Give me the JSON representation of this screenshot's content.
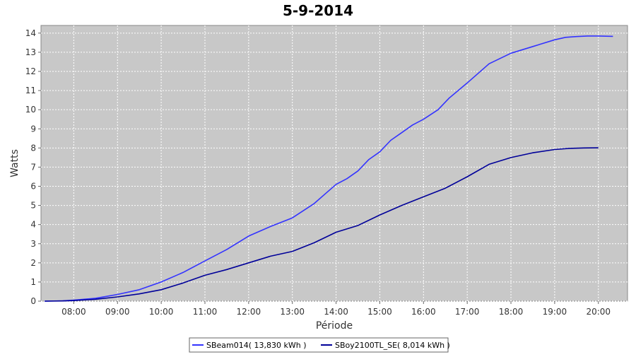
{
  "chart_data": {
    "type": "line",
    "title": "5-9-2014",
    "xlabel": "Période",
    "ylabel": "Watts",
    "xlim": [
      "07:15",
      "20:40"
    ],
    "ylim": [
      0,
      14.4
    ],
    "x_ticks": [
      "08:00",
      "09:00",
      "10:00",
      "11:00",
      "12:00",
      "13:00",
      "14:00",
      "15:00",
      "16:00",
      "17:00",
      "18:00",
      "19:00",
      "20:00"
    ],
    "y_ticks": [
      "0",
      "1",
      "2",
      "3",
      "4",
      "5",
      "6",
      "7",
      "8",
      "9",
      "10",
      "11",
      "12",
      "13",
      "14"
    ],
    "grid": true,
    "legend_position": "bottom",
    "series": [
      {
        "name": "SBeam014( 13,830 kWh )",
        "color": "#3333ff",
        "x": [
          "07:20",
          "07:45",
          "08:00",
          "08:30",
          "09:00",
          "09:30",
          "10:00",
          "10:30",
          "11:00",
          "11:30",
          "12:00",
          "12:30",
          "13:00",
          "13:30",
          "13:45",
          "14:00",
          "14:15",
          "14:30",
          "14:45",
          "15:00",
          "15:15",
          "15:30",
          "15:45",
          "16:00",
          "16:20",
          "16:35",
          "17:00",
          "17:30",
          "18:00",
          "18:30",
          "19:00",
          "19:15",
          "19:30",
          "19:45",
          "20:00",
          "20:20"
        ],
        "values": [
          0,
          0.02,
          0.05,
          0.15,
          0.35,
          0.6,
          1.0,
          1.5,
          2.1,
          2.7,
          3.4,
          3.9,
          4.35,
          5.1,
          5.6,
          6.1,
          6.4,
          6.8,
          7.4,
          7.8,
          8.4,
          8.8,
          9.2,
          9.5,
          10.0,
          10.6,
          11.4,
          12.4,
          12.95,
          13.3,
          13.65,
          13.78,
          13.82,
          13.85,
          13.85,
          13.83
        ]
      },
      {
        "name": "SBoy2100TL_SE( 8,014 kWh )",
        "color": "#000099",
        "x": [
          "07:20",
          "07:45",
          "08:00",
          "08:30",
          "09:00",
          "09:30",
          "10:00",
          "10:30",
          "11:00",
          "11:30",
          "12:00",
          "12:30",
          "13:00",
          "13:30",
          "14:00",
          "14:30",
          "15:00",
          "15:30",
          "16:00",
          "16:30",
          "17:00",
          "17:30",
          "18:00",
          "18:30",
          "19:00",
          "19:20",
          "19:40",
          "20:00"
        ],
        "values": [
          0,
          0.01,
          0.03,
          0.1,
          0.22,
          0.38,
          0.6,
          0.95,
          1.35,
          1.65,
          2.0,
          2.35,
          2.6,
          3.05,
          3.6,
          3.95,
          4.5,
          5.0,
          5.45,
          5.9,
          6.5,
          7.15,
          7.5,
          7.75,
          7.92,
          7.98,
          8.0,
          8.01
        ]
      }
    ]
  }
}
